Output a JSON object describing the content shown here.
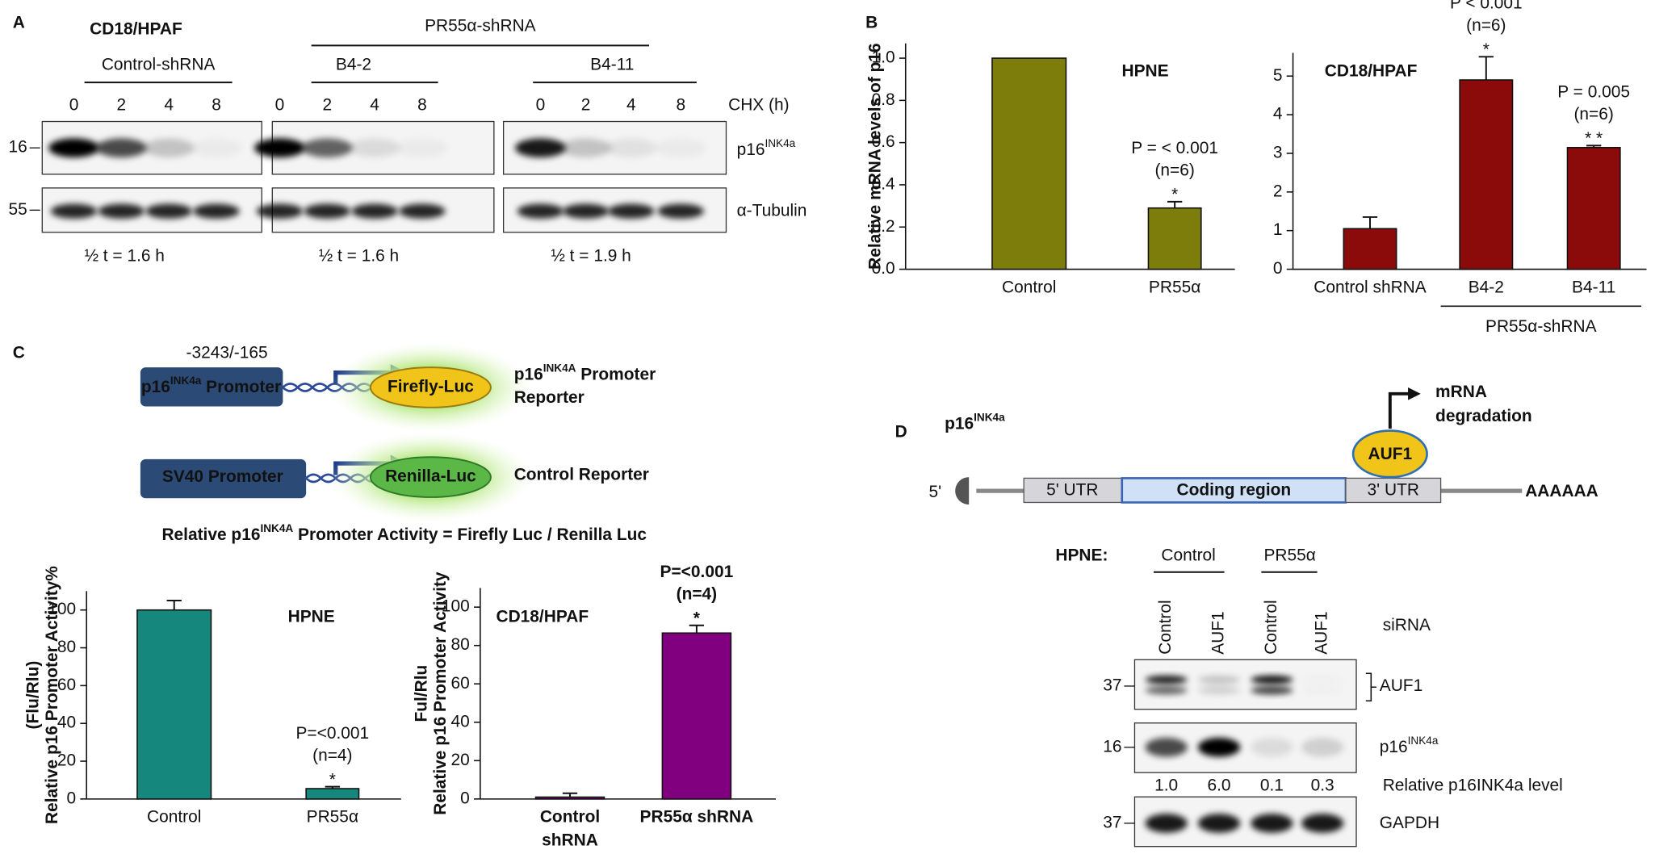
{
  "panel_labels": [
    "A",
    "B",
    "C",
    "D"
  ],
  "panel_a": {
    "cell_line": "CD18/HPAF",
    "control_group": "Control-shRNA",
    "knockdown_group": "PR55α-shRNA",
    "clones": [
      "B4-2",
      "B4-11"
    ],
    "time_points": [
      [
        "0",
        "2",
        "4",
        "8"
      ],
      [
        "0",
        "2",
        "4",
        "8"
      ],
      [
        "0",
        "2",
        "4",
        "8"
      ]
    ],
    "time_axis": "CHX (h)",
    "markers": [
      "16",
      "55"
    ],
    "proteins": [
      {
        "pre": "p16",
        "sup": "INK4a"
      },
      {
        "pre": "α-Tubulin"
      }
    ],
    "half_lives": [
      "½ t = 1.6 h",
      "½ t = 1.6 h",
      "½ t = 1.9 h"
    ]
  },
  "chart_data": [
    {
      "type": "bar",
      "title": "HPNE",
      "ylabel": "Relative mRNA levels of p16",
      "categories": [
        "Control",
        "PR55α"
      ],
      "values": [
        1.0,
        0.29
      ],
      "errors": [
        null,
        0.03
      ],
      "color": "#7d7d0c",
      "annotations": [
        [],
        [
          "P = < 0.001",
          "(n=6)",
          "*"
        ]
      ],
      "ylim": [
        0,
        1.07
      ],
      "yticks": [
        {
          "value": 0,
          "label": "0.0"
        },
        {
          "value": 0.2,
          "label": "0.2"
        },
        {
          "value": 0.4,
          "label": "0.4"
        },
        {
          "value": 0.6,
          "label": "0.6"
        },
        {
          "value": 0.8,
          "label": "0.8"
        },
        {
          "value": 1.0,
          "label": "1.0"
        }
      ]
    },
    {
      "type": "bar",
      "title": "CD18/HPAF",
      "group_label": "PR55α-shRNA",
      "categories": [
        "Control shRNA",
        "B4-2",
        "B4-11"
      ],
      "values": [
        1.05,
        4.9,
        3.15
      ],
      "errors": [
        0.3,
        0.6,
        0.05
      ],
      "color": "#8b0a0a",
      "annotations": [
        [],
        [
          "P < 0.001",
          "(n=6)",
          "*"
        ],
        [
          "P = 0.005",
          "(n=6)",
          "* *"
        ]
      ],
      "ylim": [
        0,
        5.6
      ],
      "yticks": [
        0,
        1,
        2,
        3,
        4,
        5
      ]
    },
    {
      "type": "bar",
      "title": "HPNE",
      "ylabel": [
        "(Flu/Rlu)",
        "Relative p16 Promoter Activity%"
      ],
      "categories": [
        "Control",
        "PR55α"
      ],
      "values": [
        100,
        5.5
      ],
      "errors": [
        5,
        1
      ],
      "color": "#16877d",
      "annotations": [
        [],
        [
          "P=<0.001",
          "(n=4)",
          "*"
        ]
      ],
      "ylim": [
        0,
        110
      ],
      "yticks": [
        0,
        20,
        40,
        60,
        80,
        100
      ]
    },
    {
      "type": "bar",
      "title": "CD18/HPAF",
      "ylabel": [
        "Ful/Rlu",
        "Relative p16 Promoter Activity"
      ],
      "categories": [
        "Control shRNA",
        "PR55α shRNA"
      ],
      "values": [
        1,
        86.5
      ],
      "errors": [
        2,
        4
      ],
      "color": "#800080",
      "annotations": [
        [],
        [
          "P=<0.001",
          "(n=4)",
          "*"
        ]
      ],
      "ylim": [
        0,
        110
      ],
      "yticks": [
        0,
        20,
        40,
        60,
        80,
        100
      ]
    }
  ],
  "panel_c": {
    "coordinates": "-3243/-165",
    "reporters": [
      {
        "promoter": {
          "pre": "p16",
          "sup": "INK4a",
          "post": " Promoter"
        },
        "gene": "Firefly-Luc",
        "label": [
          {
            "pre": "p16",
            "sup": "INK4A",
            "post": " Promoter"
          },
          {
            "pre": "Reporter"
          }
        ]
      },
      {
        "promoter": {
          "pre": "SV40 Promoter"
        },
        "gene": "Renilla-Luc",
        "label": [
          {
            "pre": "Control Reporter"
          }
        ]
      }
    ],
    "formula": {
      "pre": "Relative p16",
      "sup": "INK4A",
      "post": " Promoter Activity = Firefly Luc / Renilla Luc"
    }
  },
  "panel_d": {
    "gene": {
      "pre": "p16",
      "sup": "INK4a"
    },
    "cap": "5'",
    "regions": [
      "5' UTR",
      "Coding region",
      "3' UTR"
    ],
    "tail": "AAAAAA",
    "protein": "AUF1",
    "outcome": [
      "mRNA",
      "degradation"
    ],
    "cell_line": "HPNE:",
    "groups": [
      "Control",
      "PR55α"
    ],
    "lanes": [
      "Control",
      "AUF1",
      "Control",
      "AUF1"
    ],
    "lane_axis": "siRNA",
    "markers": [
      "37",
      "16",
      "37"
    ],
    "proteins": [
      {
        "pre": "AUF1"
      },
      {
        "pre": "p16",
        "sup": "INK4a"
      },
      {
        "pre": "GAPDH"
      }
    ],
    "levels": [
      "1.0",
      "6.0",
      "0.1",
      "0.3"
    ],
    "levels_label": "Relative p16INK4a level"
  }
}
